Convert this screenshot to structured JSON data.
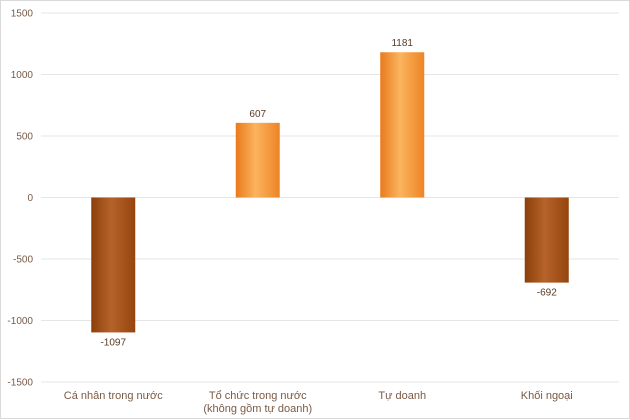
{
  "chart_data": {
    "type": "bar",
    "categories": [
      [
        "Cá nhân trong nước"
      ],
      [
        "Tổ chức trong nước",
        "(không gồm tự doanh)"
      ],
      [
        "Tự doanh"
      ],
      [
        "Khối ngoại"
      ]
    ],
    "values": [
      -1097,
      607,
      1181,
      -692
    ],
    "data_labels": [
      "-1097",
      "607",
      "1181",
      "-692"
    ],
    "ylim": [
      -1500,
      1500
    ],
    "yticks": [
      1500,
      1000,
      500,
      0,
      -500,
      -1000,
      -1500
    ],
    "ytick_labels": [
      "1500",
      "1000",
      "500",
      "0",
      "-500",
      "-1000",
      "-1500"
    ],
    "grid": true,
    "title": "",
    "xlabel": "",
    "ylabel": "",
    "colors": {
      "positive": "#f28c28",
      "positive_light": "#f9b160",
      "negative": "#9a4a10",
      "negative_light": "#b3622a",
      "grid": "#e6e6e6",
      "label": "#7a5a45"
    }
  }
}
